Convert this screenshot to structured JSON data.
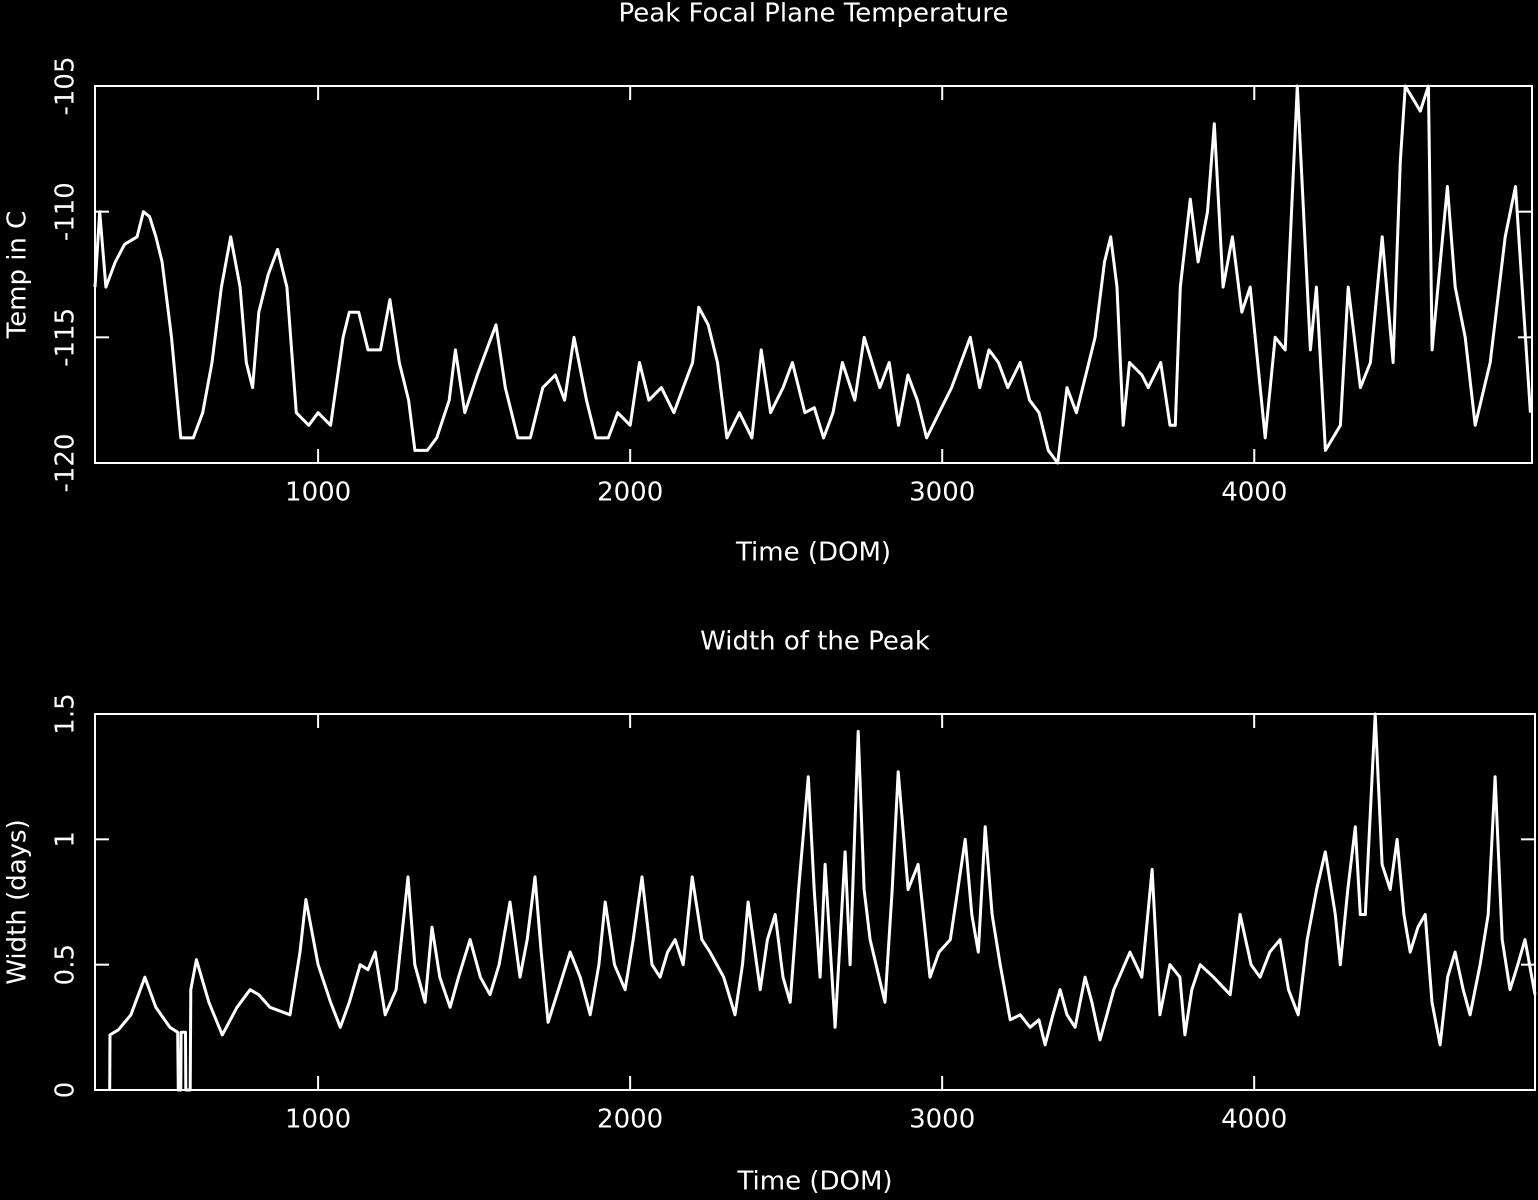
{
  "chart_data": [
    {
      "type": "line",
      "title": "Peak Focal Plane Temperature",
      "x_label": "Time (DOM)",
      "y_label": "Temp in C",
      "color": "#ffffff",
      "xlim": [
        285,
        4890
      ],
      "xticks": [
        1000,
        2000,
        3000,
        4000
      ],
      "ylim": [
        -120,
        -105
      ],
      "yticks": [
        -120,
        -115,
        -110,
        -105
      ],
      "x": [
        285,
        300,
        320,
        350,
        380,
        420,
        440,
        460,
        480,
        500,
        530,
        560,
        600,
        630,
        660,
        690,
        720,
        750,
        770,
        790,
        810,
        840,
        870,
        900,
        930,
        970,
        1000,
        1040,
        1080,
        1100,
        1130,
        1160,
        1200,
        1230,
        1260,
        1290,
        1310,
        1350,
        1380,
        1420,
        1440,
        1470,
        1510,
        1540,
        1570,
        1600,
        1640,
        1680,
        1720,
        1760,
        1790,
        1820,
        1860,
        1890,
        1930,
        1960,
        2000,
        2030,
        2060,
        2100,
        2140,
        2170,
        2200,
        2220,
        2250,
        2280,
        2310,
        2350,
        2390,
        2420,
        2450,
        2490,
        2520,
        2560,
        2590,
        2620,
        2650,
        2680,
        2720,
        2750,
        2800,
        2830,
        2860,
        2890,
        2920,
        2950,
        2990,
        3030,
        3060,
        3090,
        3120,
        3150,
        3180,
        3210,
        3250,
        3280,
        3310,
        3340,
        3370,
        3400,
        3430,
        3460,
        3490,
        3520,
        3540,
        3560,
        3580,
        3600,
        3640,
        3660,
        3700,
        3730,
        3747,
        3763,
        3795,
        3820,
        3850,
        3872,
        3900,
        3930,
        3960,
        3987,
        4035,
        4067,
        4099,
        4138,
        4180,
        4199,
        4228,
        4276,
        4301,
        4340,
        4372,
        4410,
        4445,
        4468,
        4484,
        4532,
        4558,
        4570,
        4596,
        4619,
        4644,
        4676,
        4708,
        4756,
        4804,
        4837,
        4885
      ],
      "values": [
        -113,
        -110,
        -113,
        -112,
        -111.3,
        -111,
        -110,
        -110.2,
        -111,
        -112,
        -115,
        -119,
        -119,
        -118,
        -116,
        -113,
        -111,
        -113,
        -116,
        -117,
        -114,
        -112.5,
        -111.5,
        -113,
        -118,
        -118.5,
        -118,
        -118.5,
        -115,
        -114,
        -114,
        -115.5,
        -115.5,
        -113.5,
        -116,
        -117.5,
        -119.5,
        -119.5,
        -119,
        -117.5,
        -115.5,
        -118,
        -116.5,
        -115.5,
        -114.5,
        -117,
        -119,
        -119,
        -117,
        -116.5,
        -117.5,
        -115,
        -117.5,
        -119,
        -119,
        -118,
        -118.5,
        -116,
        -117.5,
        -117,
        -118,
        -117,
        -116,
        -113.8,
        -114.5,
        -116,
        -119,
        -118,
        -119,
        -115.5,
        -118,
        -117,
        -116,
        -118,
        -117.8,
        -119,
        -118,
        -116,
        -117.5,
        -115,
        -117,
        -116,
        -118.5,
        -116.5,
        -117.5,
        -119,
        -118,
        -117,
        -116,
        -115,
        -117,
        -115.5,
        -116,
        -117,
        -116,
        -117.5,
        -118,
        -119.5,
        -120,
        -117,
        -118,
        -116.5,
        -115,
        -112,
        -111,
        -113,
        -118.5,
        -116,
        -116.5,
        -117,
        -116,
        -118.5,
        -118.5,
        -113,
        -109.5,
        -112,
        -110,
        -106.5,
        -113,
        -111,
        -114,
        -113,
        -119,
        -115,
        -115.5,
        -105,
        -115.5,
        -113,
        -119.5,
        -118.5,
        -113,
        -117,
        -116,
        -111,
        -116,
        -108,
        -105,
        -106,
        -105,
        -115.5,
        -112,
        -109,
        -113,
        -115,
        -118.5,
        -116,
        -111,
        -109,
        -118
      ]
    },
    {
      "type": "line",
      "title": "Width of the Peak",
      "x_label": "Time (DOM)",
      "y_label": "Width (days)",
      "color": "#ffffff",
      "xlim": [
        285,
        4900
      ],
      "xticks": [
        1000,
        2000,
        3000,
        4000
      ],
      "ylim": [
        0,
        1.5
      ],
      "yticks": [
        0,
        0.5,
        1,
        1.5
      ],
      "x": [
        332,
        333,
        360,
        400,
        445,
        480,
        525,
        550,
        552,
        560,
        561,
        575,
        576,
        590,
        592,
        610,
        650,
        693,
        740,
        782,
        810,
        846,
        910,
        942,
        961,
        1000,
        1040,
        1071,
        1100,
        1135,
        1160,
        1183,
        1215,
        1250,
        1288,
        1310,
        1343,
        1365,
        1390,
        1423,
        1450,
        1487,
        1520,
        1551,
        1580,
        1615,
        1647,
        1670,
        1695,
        1715,
        1737,
        1770,
        1808,
        1840,
        1872,
        1900,
        1920,
        1950,
        1984,
        2010,
        2038,
        2070,
        2096,
        2120,
        2144,
        2170,
        2199,
        2230,
        2256,
        2300,
        2336,
        2360,
        2378,
        2417,
        2440,
        2465,
        2490,
        2513,
        2540,
        2571,
        2590,
        2609,
        2625,
        2657,
        2689,
        2705,
        2731,
        2750,
        2769,
        2817,
        2840,
        2859,
        2891,
        2923,
        2961,
        2990,
        3026,
        3050,
        3074,
        3095,
        3116,
        3138,
        3160,
        3186,
        3218,
        3250,
        3282,
        3310,
        3330,
        3355,
        3378,
        3400,
        3426,
        3458,
        3480,
        3506,
        3550,
        3602,
        3640,
        3673,
        3698,
        3730,
        3762,
        3778,
        3800,
        3827,
        3870,
        3923,
        3955,
        3990,
        4019,
        4050,
        4083,
        4110,
        4141,
        4170,
        4200,
        4228,
        4260,
        4276,
        4300,
        4324,
        4340,
        4356,
        4388,
        4410,
        4436,
        4458,
        4480,
        4500,
        4525,
        4548,
        4570,
        4596,
        4620,
        4644,
        4670,
        4692,
        4724,
        4750,
        4772,
        4795,
        4820,
        4845,
        4868,
        4900
      ],
      "values": [
        0,
        0.22,
        0.24,
        0.3,
        0.45,
        0.33,
        0.25,
        0.23,
        0,
        0,
        0.23,
        0.23,
        0,
        0,
        0.4,
        0.52,
        0.35,
        0.22,
        0.33,
        0.4,
        0.38,
        0.33,
        0.3,
        0.55,
        0.76,
        0.5,
        0.35,
        0.25,
        0.35,
        0.5,
        0.48,
        0.55,
        0.3,
        0.4,
        0.85,
        0.5,
        0.35,
        0.65,
        0.45,
        0.33,
        0.45,
        0.6,
        0.45,
        0.38,
        0.5,
        0.75,
        0.45,
        0.6,
        0.85,
        0.55,
        0.27,
        0.4,
        0.55,
        0.45,
        0.3,
        0.5,
        0.75,
        0.5,
        0.4,
        0.6,
        0.85,
        0.5,
        0.45,
        0.55,
        0.6,
        0.5,
        0.85,
        0.6,
        0.55,
        0.45,
        0.3,
        0.5,
        0.75,
        0.4,
        0.6,
        0.7,
        0.45,
        0.35,
        0.8,
        1.25,
        0.8,
        0.45,
        0.9,
        0.25,
        0.95,
        0.5,
        1.43,
        0.8,
        0.6,
        0.35,
        0.8,
        1.27,
        0.8,
        0.9,
        0.45,
        0.55,
        0.6,
        0.8,
        1.0,
        0.7,
        0.55,
        1.05,
        0.7,
        0.5,
        0.28,
        0.3,
        0.25,
        0.28,
        0.18,
        0.3,
        0.4,
        0.3,
        0.25,
        0.45,
        0.35,
        0.2,
        0.4,
        0.55,
        0.45,
        0.88,
        0.3,
        0.5,
        0.45,
        0.22,
        0.4,
        0.5,
        0.45,
        0.38,
        0.7,
        0.5,
        0.45,
        0.55,
        0.6,
        0.4,
        0.3,
        0.6,
        0.8,
        0.95,
        0.7,
        0.5,
        0.8,
        1.05,
        0.7,
        0.7,
        1.5,
        0.9,
        0.8,
        1.0,
        0.7,
        0.55,
        0.65,
        0.7,
        0.35,
        0.18,
        0.45,
        0.55,
        0.4,
        0.3,
        0.5,
        0.7,
        1.25,
        0.6,
        0.4,
        0.5,
        0.6,
        0.38
      ]
    }
  ]
}
